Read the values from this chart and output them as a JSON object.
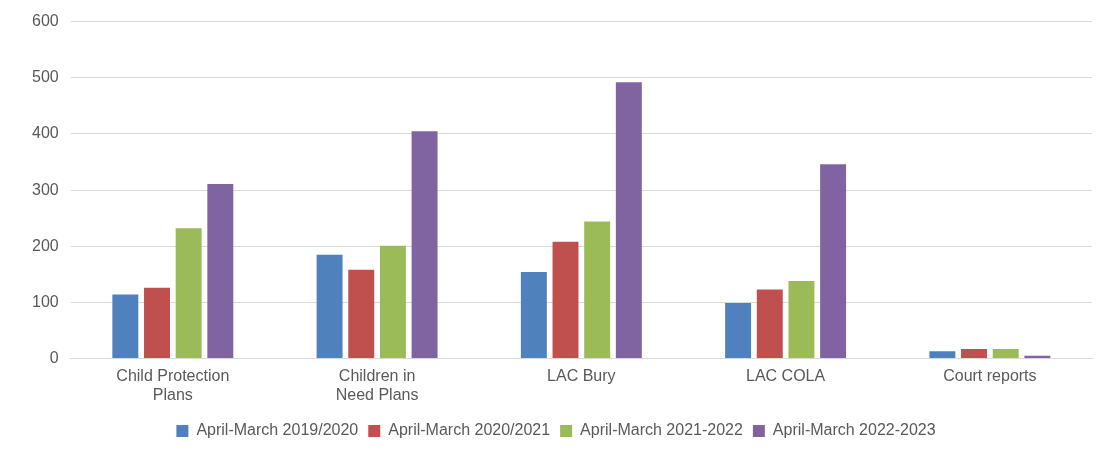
{
  "chart_data": {
    "type": "bar",
    "categories": [
      "Child Protection Plans",
      "Children in Need Plans",
      "LAC Bury",
      "LAC COLA",
      "Court reports"
    ],
    "series": [
      {
        "name": "April-March 2019/2020",
        "color": "#4f81bd",
        "values": [
          114,
          185,
          154,
          99,
          13
        ]
      },
      {
        "name": "April-March 2020/2021",
        "color": "#c0504d",
        "values": [
          126,
          158,
          208,
          123,
          17
        ]
      },
      {
        "name": "April-March 2021-2022",
        "color": "#9bbb59",
        "values": [
          232,
          201,
          244,
          138,
          17
        ]
      },
      {
        "name": "April-March 2022-2023",
        "color": "#8064a2",
        "values": [
          311,
          405,
          492,
          346,
          5
        ]
      }
    ],
    "ylim": [
      0,
      600
    ],
    "yticks": [
      0,
      100,
      200,
      300,
      400,
      500,
      600
    ],
    "grid": "y",
    "legend": "bottom"
  }
}
